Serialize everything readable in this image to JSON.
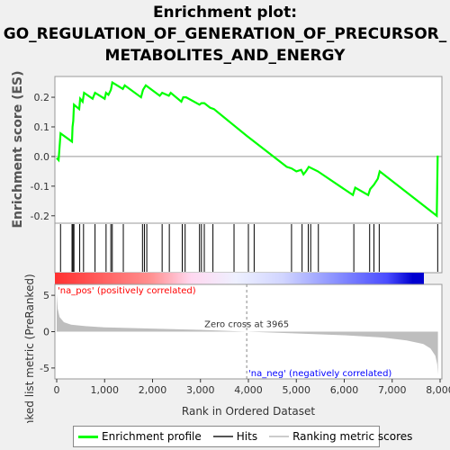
{
  "title_lines": [
    "Enrichment plot:",
    "GO_REGULATION_OF_GENERATION_OF_PRECURSOR_",
    "METABOLITES_AND_ENERGY"
  ],
  "colors": {
    "enrichment": "#00ff00",
    "hits": "#000000",
    "metric": "#bebebe",
    "pos": "#ff0000",
    "neg": "#0000ff"
  },
  "chart_data": [
    {
      "type": "line",
      "name": "enrichment-plot",
      "ylabel": "Enrichment score (ES)",
      "xlim": [
        0,
        8000
      ],
      "ylim": [
        -0.225,
        0.27
      ],
      "yticks": [
        -0.2,
        -0.1,
        0.0,
        0.1,
        0.2
      ],
      "ytick_labels": [
        "-0.2",
        "-0.1",
        "0.0",
        "0.1",
        "0.2"
      ],
      "points": [
        [
          0,
          -0.005
        ],
        [
          40,
          -0.012
        ],
        [
          80,
          0.078
        ],
        [
          320,
          0.05
        ],
        [
          330,
          0.1
        ],
        [
          345,
          0.12
        ],
        [
          360,
          0.175
        ],
        [
          470,
          0.16
        ],
        [
          490,
          0.195
        ],
        [
          540,
          0.185
        ],
        [
          570,
          0.215
        ],
        [
          750,
          0.195
        ],
        [
          800,
          0.215
        ],
        [
          1000,
          0.195
        ],
        [
          1030,
          0.215
        ],
        [
          1080,
          0.208
        ],
        [
          1130,
          0.225
        ],
        [
          1160,
          0.25
        ],
        [
          1380,
          0.228
        ],
        [
          1420,
          0.24
        ],
        [
          1760,
          0.2
        ],
        [
          1800,
          0.225
        ],
        [
          1860,
          0.24
        ],
        [
          2150,
          0.205
        ],
        [
          2200,
          0.215
        ],
        [
          2340,
          0.205
        ],
        [
          2380,
          0.215
        ],
        [
          2600,
          0.185
        ],
        [
          2640,
          0.2
        ],
        [
          2700,
          0.2
        ],
        [
          2980,
          0.175
        ],
        [
          3020,
          0.18
        ],
        [
          3080,
          0.18
        ],
        [
          3200,
          0.165
        ],
        [
          3280,
          0.16
        ],
        [
          3965,
          0.07
        ],
        [
          4800,
          -0.035
        ],
        [
          4900,
          -0.04
        ],
        [
          5000,
          -0.05
        ],
        [
          5100,
          -0.045
        ],
        [
          5150,
          -0.06
        ],
        [
          5200,
          -0.05
        ],
        [
          5260,
          -0.035
        ],
        [
          5450,
          -0.05
        ],
        [
          6180,
          -0.13
        ],
        [
          6230,
          -0.105
        ],
        [
          6500,
          -0.13
        ],
        [
          6540,
          -0.11
        ],
        [
          6620,
          -0.095
        ],
        [
          6700,
          -0.075
        ],
        [
          6740,
          -0.05
        ],
        [
          7930,
          -0.2
        ],
        [
          7950,
          0.003
        ]
      ]
    },
    {
      "type": "hits",
      "name": "hit-positions",
      "xlim": [
        0,
        8000
      ],
      "positions": [
        80,
        320,
        340,
        360,
        480,
        560,
        800,
        1030,
        1130,
        1160,
        1390,
        1790,
        1830,
        1880,
        2200,
        2350,
        2620,
        2680,
        2980,
        3020,
        3080,
        3260,
        3700,
        4000,
        4120,
        4900,
        5120,
        5250,
        5300,
        5460,
        6200,
        6530,
        6620,
        6730,
        7950
      ]
    },
    {
      "type": "area",
      "name": "ranked-list-metric",
      "xlabel": "Rank in Ordered Dataset",
      "ylabel": "Ranked list metric (PreRanked)",
      "xlim": [
        0,
        8000
      ],
      "ylim": [
        -6.5,
        6.5
      ],
      "xticks": [
        0,
        1000,
        2000,
        3000,
        4000,
        5000,
        6000,
        7000,
        8000
      ],
      "xtick_labels": [
        "0",
        "1,000",
        "2,000",
        "3,000",
        "4,000",
        "5,000",
        "6,000",
        "7,000",
        "8,000"
      ],
      "yticks": [
        -5,
        0,
        5
      ],
      "ytick_labels": [
        "-5",
        "0",
        "5"
      ],
      "points": [
        [
          0,
          5.2
        ],
        [
          20,
          3.2
        ],
        [
          60,
          2.0
        ],
        [
          150,
          1.3
        ],
        [
          300,
          0.95
        ],
        [
          600,
          0.75
        ],
        [
          1000,
          0.6
        ],
        [
          2000,
          0.42
        ],
        [
          3000,
          0.25
        ],
        [
          3965,
          0.0
        ],
        [
          5000,
          -0.25
        ],
        [
          6000,
          -0.5
        ],
        [
          6800,
          -0.8
        ],
        [
          7300,
          -1.2
        ],
        [
          7650,
          -1.7
        ],
        [
          7800,
          -2.3
        ],
        [
          7900,
          -3.3
        ],
        [
          7940,
          -4.5
        ],
        [
          7955,
          -5.9
        ]
      ],
      "zero_cross_label": "Zero cross at 3965",
      "zero_cross": 3965,
      "pos_label": "'na_pos' (positively correlated)",
      "neg_label": "'na_neg' (negatively correlated)"
    }
  ],
  "legend": {
    "enrichment": "Enrichment profile",
    "hits": "Hits",
    "metric": "Ranking metric scores"
  }
}
